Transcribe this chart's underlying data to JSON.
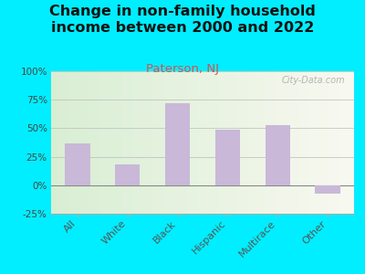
{
  "title": "Change in non-family household\nincome between 2000 and 2022",
  "subtitle": "Paterson, NJ",
  "categories": [
    "All",
    "White",
    "Black",
    "Hispanic",
    "Multirace",
    "Other"
  ],
  "values": [
    37,
    18,
    72,
    49,
    53,
    -7
  ],
  "bar_color": "#c9b8d8",
  "title_fontsize": 11.5,
  "subtitle_color": "#cc5555",
  "subtitle_fontsize": 9.5,
  "ylim": [
    -25,
    100
  ],
  "yticks": [
    -25,
    0,
    25,
    50,
    75,
    100
  ],
  "ytick_labels": [
    "-25%",
    "0%",
    "25%",
    "50%",
    "75%",
    "100%"
  ],
  "background_outer": "#00eeff",
  "watermark": "City-Data.com"
}
